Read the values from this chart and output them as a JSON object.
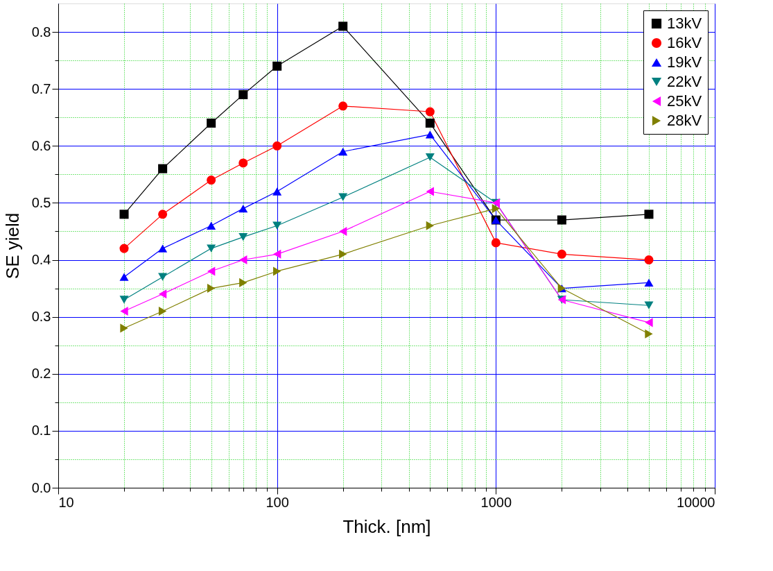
{
  "chart_data": {
    "type": "line",
    "xlabel": "Thick. [nm]",
    "ylabel": "SE yield",
    "log": "x",
    "x": [
      20,
      30,
      50,
      70,
      100,
      200,
      500,
      1000,
      2000,
      5000
    ],
    "xlim": [
      10,
      10000
    ],
    "xticks": [
      10,
      {
        "value": 20,
        "label": null
      },
      {
        "value": 30,
        "label": null
      },
      {
        "value": 40,
        "label": null
      },
      {
        "value": 50,
        "label": null
      },
      {
        "value": 60,
        "label": null
      },
      {
        "value": 70,
        "label": null
      },
      {
        "value": 80,
        "label": null
      },
      {
        "value": 90,
        "label": null
      },
      100,
      {
        "value": 200,
        "label": null
      },
      {
        "value": 300,
        "label": null
      },
      {
        "value": 400,
        "label": null
      },
      {
        "value": 500,
        "label": null
      },
      {
        "value": 600,
        "label": null
      },
      {
        "value": 700,
        "label": null
      },
      {
        "value": 800,
        "label": null
      },
      {
        "value": 900,
        "label": null
      },
      1000,
      {
        "value": 2000,
        "label": null
      },
      {
        "value": 3000,
        "label": null
      },
      {
        "value": 4000,
        "label": null
      },
      {
        "value": 5000,
        "label": null
      },
      {
        "value": 6000,
        "label": null
      },
      {
        "value": 7000,
        "label": null
      },
      {
        "value": 8000,
        "label": null
      },
      {
        "value": 9000,
        "label": null
      },
      10000
    ],
    "ylim": [
      0.0,
      0.85
    ],
    "yticks": [
      {
        "value": 0.0,
        "label": "0.0"
      },
      {
        "value": 0.05,
        "label": null
      },
      0.1,
      {
        "value": 0.15,
        "label": null
      },
      0.2,
      {
        "value": 0.25,
        "label": null
      },
      0.3,
      {
        "value": 0.35,
        "label": null
      },
      0.4,
      {
        "value": 0.45,
        "label": null
      },
      0.5,
      {
        "value": 0.55,
        "label": null
      },
      0.6,
      {
        "value": 0.65,
        "label": null
      },
      0.7,
      {
        "value": 0.75,
        "label": null
      },
      0.8
    ],
    "grid": true,
    "legend": "top right",
    "line_style": "solid",
    "series": [
      {
        "name": "13kV",
        "color": "#000000",
        "marker": "square",
        "values": [
          0.48,
          0.56,
          0.64,
          0.69,
          0.74,
          0.81,
          0.64,
          0.47,
          0.47,
          0.48
        ]
      },
      {
        "name": "16kV",
        "color": "#ff0000",
        "marker": "circle",
        "values": [
          0.42,
          0.48,
          0.54,
          0.57,
          0.6,
          0.67,
          0.66,
          0.43,
          0.41,
          0.4
        ]
      },
      {
        "name": "19kV",
        "color": "#0000ff",
        "marker": "triangle",
        "values": [
          0.37,
          0.42,
          0.46,
          0.49,
          0.52,
          0.59,
          0.62,
          0.47,
          0.35,
          0.36
        ]
      },
      {
        "name": "22kV",
        "color": "#008080",
        "marker": "triangle-down",
        "values": [
          0.33,
          0.37,
          0.42,
          0.44,
          0.46,
          0.51,
          0.58,
          0.5,
          0.33,
          0.32
        ]
      },
      {
        "name": "25kV",
        "color": "#ff00ff",
        "marker": "triangle-left",
        "values": [
          0.31,
          0.34,
          0.38,
          0.4,
          0.41,
          0.45,
          0.52,
          0.5,
          0.33,
          0.29
        ]
      },
      {
        "name": "28kV",
        "color": "#808000",
        "marker": "triangle-right",
        "values": [
          0.28,
          0.31,
          0.35,
          0.36,
          0.38,
          0.41,
          0.46,
          0.49,
          0.35,
          0.27
        ]
      }
    ]
  }
}
